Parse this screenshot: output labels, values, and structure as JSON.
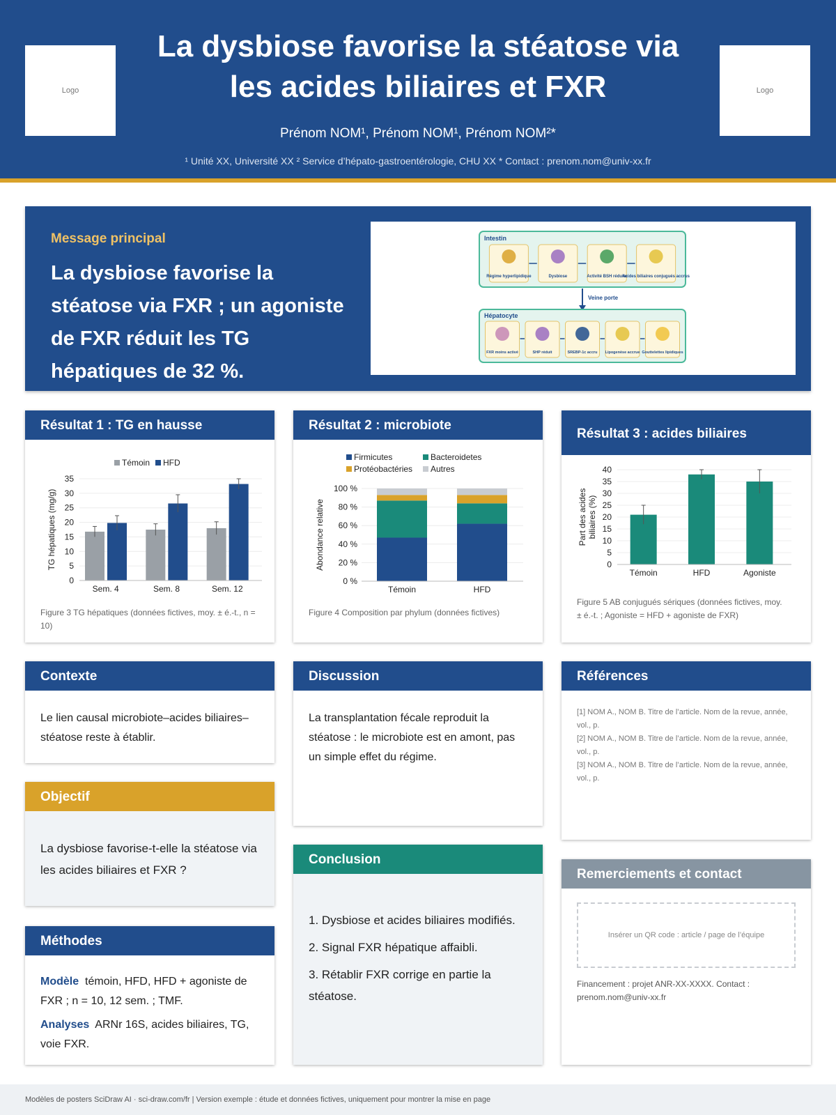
{
  "header": {
    "title_line1": "La dysbiose favorise la stéatose via",
    "title_line2": "les acides biliaires et FXR",
    "authors": "Prénom NOM¹, Prénom NOM¹, Prénom NOM²*",
    "affiliations": "¹ Unité XX, Université XX   ² Service d’hépato-gastroentérologie, CHU XX   * Contact : prenom.nom@univ-xx.fr",
    "logo_left": "Logo",
    "logo_right": "Logo"
  },
  "hero": {
    "kicker": "Message principal",
    "message": "La dysbiose favorise la stéatose via FXR ; un agoniste de FXR réduit les TG hépatiques de 32 %.",
    "figure": {
      "intestin_label": "Intestin",
      "hepatocyte_label": "Hépatocyte",
      "portal_label": "Veine porte",
      "intestin_steps": [
        "Régime hyperlipidique",
        "Dysbiose",
        "Activité BSH réduite",
        "Acides biliaires conjugués accrus"
      ],
      "hepatocyte_steps": [
        "FXR moins activé",
        "SHP réduit",
        "SREBP-1c accru",
        "Lipogenèse accrue",
        "Gouttelettes lipidiques"
      ]
    }
  },
  "result1": {
    "heading": "Résultat 1 : TG en hausse",
    "caption": "Figure 3  TG hépatiques (données fictives, moy. ± é.-t., n = 10)"
  },
  "result2": {
    "heading": "Résultat 2 : microbiote",
    "caption": "Figure 4  Composition par phylum (données fictives)"
  },
  "result3": {
    "heading": "Résultat 3 : acides biliaires",
    "caption": "Figure 5  AB conjugués sériques (données fictives, moy. ± é.-t. ; Agoniste = HFD + agoniste de FXR)"
  },
  "contexte": {
    "heading": "Contexte",
    "text": "Le lien causal microbiote–acides biliaires–stéatose reste à établir."
  },
  "objectif": {
    "heading": "Objectif",
    "text": "La dysbiose favorise-t-elle la stéatose via les acides biliaires et FXR ?"
  },
  "methodes": {
    "heading": "Méthodes",
    "modele_label": "Modèle",
    "modele_text": "témoin, HFD, HFD + agoniste de FXR ; n = 10, 12 sem. ; TMF.",
    "analyses_label": "Analyses",
    "analyses_text": "ARNr 16S, acides biliaires, TG, voie FXR."
  },
  "discussion": {
    "heading": "Discussion",
    "text": "La transplantation fécale reproduit la stéatose : le microbiote est en amont, pas un simple effet du régime."
  },
  "conclusion": {
    "heading": "Conclusion",
    "items": [
      "1. Dysbiose et acides biliaires modifiés.",
      "2. Signal FXR hépatique affaibli.",
      "3. Rétablir FXR corrige en partie la stéatose."
    ]
  },
  "references": {
    "heading": "Références",
    "items": [
      "[1] NOM A., NOM B. Titre de l’article. Nom de la revue, année, vol., p.",
      "[2] NOM A., NOM B. Titre de l’article. Nom de la revue, année, vol., p.",
      "[3] NOM A., NOM B. Titre de l’article. Nom de la revue, année, vol., p."
    ]
  },
  "remerciements": {
    "heading": "Remerciements et contact",
    "qr_placeholder": "Insérer un QR code : article / page de l’équipe",
    "text": "Financement : projet ANR-XX-XXXX. Contact : prenom.nom@univ-xx.fr"
  },
  "footer": {
    "text": "Modèles de posters SciDraw AI · sci-draw.com/fr  |  Version exemple : étude et données fictives, uniquement pour montrer la mise en page"
  },
  "colors": {
    "navy": "#214d8c",
    "gold": "#d9a22a",
    "teal": "#1a8a7a",
    "grey": "#9aa0a6",
    "light_grey": "#c8ccd1"
  },
  "chart_data": [
    {
      "type": "bar",
      "categories": [
        "Sem. 4",
        "Sem. 8",
        "Sem. 12"
      ],
      "series": [
        {
          "name": "Témoin",
          "values": [
            16.8,
            17.5,
            18.0
          ],
          "errors": [
            1.8,
            2.0,
            2.2
          ],
          "color": "#9aa0a6"
        },
        {
          "name": "HFD",
          "values": [
            19.8,
            26.5,
            33.2
          ],
          "errors": [
            2.5,
            3.0,
            1.8
          ],
          "color": "#214d8c"
        }
      ],
      "ylabel": "TG hépatiques (mg/g)",
      "ylim": [
        0,
        35
      ],
      "yticks": [
        0,
        5,
        10,
        15,
        20,
        25,
        30,
        35
      ],
      "legend": "top"
    },
    {
      "type": "bar",
      "stacked": true,
      "categories": [
        "Témoin",
        "HFD"
      ],
      "series": [
        {
          "name": "Firmicutes",
          "values": [
            47,
            62
          ],
          "color": "#214d8c"
        },
        {
          "name": "Bacteroidetes",
          "values": [
            40,
            22
          ],
          "color": "#1a8a7a"
        },
        {
          "name": "Protéobactéries",
          "values": [
            6,
            9
          ],
          "color": "#d9a22a"
        },
        {
          "name": "Autres",
          "values": [
            7,
            7
          ],
          "color": "#c8ccd1"
        }
      ],
      "ylabel": "Abondance relative",
      "ylim": [
        0,
        100
      ],
      "yticks": [
        "0 %",
        "20 %",
        "40 %",
        "60 %",
        "80 %",
        "100 %"
      ],
      "legend": "top"
    },
    {
      "type": "bar",
      "categories": [
        "Témoin",
        "HFD",
        "Agoniste"
      ],
      "series": [
        {
          "values": [
            21,
            38,
            35
          ],
          "errors": [
            4,
            2,
            5
          ],
          "color": "#1a8a7a"
        }
      ],
      "ylabel": "Part des acides biliaires (%)",
      "ylim": [
        0,
        40
      ],
      "yticks": [
        0,
        5,
        10,
        15,
        20,
        25,
        30,
        35,
        40
      ]
    }
  ]
}
